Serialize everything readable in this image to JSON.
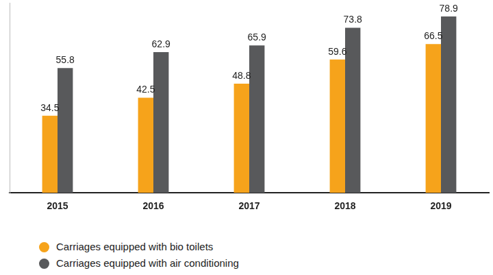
{
  "chart_data": {
    "type": "bar",
    "categories": [
      "2015",
      "2016",
      "2017",
      "2018",
      "2019"
    ],
    "series": [
      {
        "name": "Carriages equipped with bio toilets",
        "color": "#f6a31b",
        "values": [
          34.5,
          42.5,
          48.8,
          59.6,
          66.5
        ]
      },
      {
        "name": "Carriages equipped with air conditioning",
        "color": "#58595b",
        "values": [
          55.8,
          62.9,
          65.9,
          73.8,
          78.9
        ]
      }
    ],
    "ylim": [
      0,
      85
    ],
    "grid": false,
    "legend": "bottom-left",
    "data_labels": true,
    "tick_labels": "x"
  }
}
